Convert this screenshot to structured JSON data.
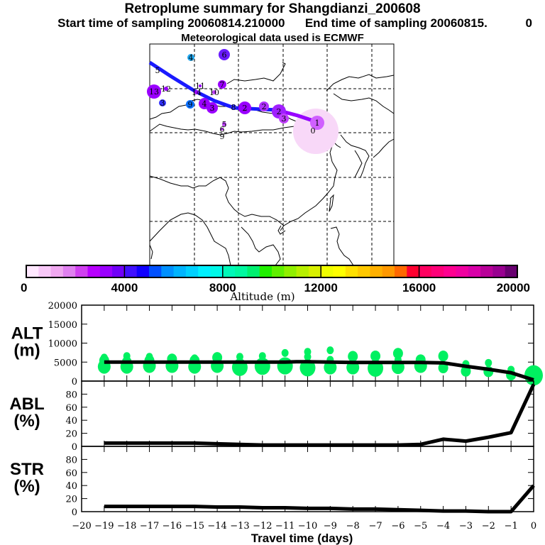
{
  "header": {
    "title": "Retroplume summary for Shangdianzi_200608",
    "subtitle_start": "Start time of sampling 20060814.210000",
    "subtitle_end": "End time of sampling 20060815.",
    "subtitle_end_suffix": "0",
    "met_line": "Meteorological data used is ECMWF"
  },
  "map": {
    "description": "Retroplume trajectory map over East/Central Asia",
    "track_color": "#1a1aff",
    "release_color": "#f8d8f8",
    "cluster_labels": [
      {
        "label": "4",
        "color": "#20a8f0"
      },
      {
        "label": "6",
        "color": "#6a1aff"
      },
      {
        "label": "5",
        "color": "#1a1aff"
      },
      {
        "label": "13",
        "color": "#9a00ff"
      },
      {
        "label": "12",
        "color": "#9a00ff"
      },
      {
        "label": "14",
        "color": "#9a00ff"
      },
      {
        "label": "11",
        "color": "#9a00ff"
      },
      {
        "label": "7",
        "color": "#9a00ff"
      },
      {
        "label": "10",
        "color": "#c040ff"
      },
      {
        "label": "3",
        "color": "#3030ff"
      },
      {
        "label": "9",
        "color": "#0a70ff"
      },
      {
        "label": "4",
        "color": "#9a00ff"
      },
      {
        "label": "3",
        "color": "#9a00ff"
      },
      {
        "label": "8",
        "color": "#3030ff"
      },
      {
        "label": "2",
        "color": "#9a00ff"
      },
      {
        "label": "2",
        "color": "#b030ff"
      },
      {
        "label": "2",
        "color": "#a020ff"
      },
      {
        "label": "3",
        "color": "#c040ff"
      },
      {
        "label": "1",
        "color": "#d060ff"
      },
      {
        "label": "0",
        "color": "#f8d8f8"
      },
      {
        "label": "5",
        "color": "#c040ff"
      },
      {
        "label": "6",
        "color": "#c040ff"
      },
      {
        "label": "9",
        "color": "#ffffff"
      }
    ]
  },
  "colorbar": {
    "xlabel": "Altitude (m)",
    "ticks": [
      "0",
      "4000",
      "8000",
      "12000",
      "16000",
      "20000"
    ],
    "range": [
      0,
      20000
    ],
    "colors": [
      "#ffe8ff",
      "#f8c8f8",
      "#f0a8f0",
      "#e080f0",
      "#d040f0",
      "#b800ff",
      "#9a00ff",
      "#7000f8",
      "#4010ff",
      "#1000ff",
      "#0050ff",
      "#0090ff",
      "#00b4ff",
      "#00d0ff",
      "#00f0ff",
      "#00f8e8",
      "#00f8b8",
      "#00f8a0",
      "#00f070",
      "#20f000",
      "#60f000",
      "#90f000",
      "#b8f000",
      "#d8f000",
      "#f0ff00",
      "#ffff00",
      "#ffe000",
      "#ffc800",
      "#ffb000",
      "#ff9800",
      "#ff6800",
      "#ff0030",
      "#ff0060",
      "#ff0078",
      "#ff0090",
      "#f000a0",
      "#d800a8",
      "#b80098",
      "#980090",
      "#680070"
    ]
  },
  "chart_data": [
    {
      "type": "line",
      "panel_label": "ALT\n(m)",
      "panel_label_lines": [
        "ALT",
        "(m)"
      ],
      "ylabel": "ALT (m)",
      "ylim": [
        0,
        20000
      ],
      "yticks": [
        "0",
        "5000",
        "10000",
        "15000",
        "20000"
      ],
      "ytick_values": [
        0,
        5000,
        10000,
        15000,
        20000
      ],
      "x": [
        -19,
        -18,
        -17,
        -16,
        -15,
        -14,
        -13,
        -12,
        -11,
        -10.5,
        -10,
        -9,
        -8,
        -7,
        -6,
        -5,
        -4,
        -3,
        -2,
        -1,
        0
      ],
      "values": [
        5000,
        5000,
        5000,
        5000,
        5000,
        5000,
        5000,
        5000,
        5000,
        5100,
        5100,
        5000,
        4900,
        4900,
        4900,
        4900,
        4800,
        3900,
        3100,
        2200,
        300
      ],
      "marker_color": "#00f060",
      "cluster_markers": [
        {
          "x": -19,
          "alt": [
            3800,
            5400,
            6200
          ],
          "size": [
            3,
            2,
            1
          ]
        },
        {
          "x": -18,
          "alt": [
            3800,
            5000,
            6600
          ],
          "size": [
            3,
            2,
            1
          ]
        },
        {
          "x": -17,
          "alt": [
            4000,
            5400,
            6400
          ],
          "size": [
            3,
            2,
            1
          ]
        },
        {
          "x": -16,
          "alt": [
            4000,
            5800
          ],
          "size": [
            3,
            2
          ]
        },
        {
          "x": -15,
          "alt": [
            3800,
            5400,
            6000
          ],
          "size": [
            3,
            2,
            1
          ]
        },
        {
          "x": -14,
          "alt": [
            4000,
            6200
          ],
          "size": [
            3,
            2
          ]
        },
        {
          "x": -13,
          "alt": [
            3600,
            5200,
            6400
          ],
          "size": [
            4,
            1,
            1
          ]
        },
        {
          "x": -12,
          "alt": [
            3900,
            6600
          ],
          "size": [
            4,
            1
          ]
        },
        {
          "x": -11,
          "alt": [
            4000,
            7400
          ],
          "size": [
            4,
            1
          ]
        },
        {
          "x": -10,
          "alt": [
            3500,
            6400,
            7700
          ],
          "size": [
            4,
            1,
            1
          ]
        },
        {
          "x": -9,
          "alt": [
            3600,
            5600,
            8100
          ],
          "size": [
            3,
            1,
            1
          ]
        },
        {
          "x": -8,
          "alt": [
            3600,
            6500
          ],
          "size": [
            3,
            2
          ]
        },
        {
          "x": -7,
          "alt": [
            3400,
            6600
          ],
          "size": [
            4,
            2
          ]
        },
        {
          "x": -6,
          "alt": [
            3700,
            5600,
            7300
          ],
          "size": [
            3,
            1,
            2
          ]
        },
        {
          "x": -5,
          "alt": [
            4000,
            5600
          ],
          "size": [
            3,
            2
          ]
        },
        {
          "x": -4,
          "alt": [
            3500,
            6600
          ],
          "size": [
            2,
            2
          ]
        },
        {
          "x": -3,
          "alt": [
            2600,
            4500
          ],
          "size": [
            2,
            1
          ]
        },
        {
          "x": -2,
          "alt": [
            2500,
            4800
          ],
          "size": [
            2,
            1
          ]
        },
        {
          "x": -1,
          "alt": [
            1600,
            3000
          ],
          "size": [
            2,
            1
          ]
        },
        {
          "x": 0,
          "alt": [
            1500
          ],
          "size": [
            5
          ]
        }
      ]
    },
    {
      "type": "line",
      "panel_label_lines": [
        "ABL",
        "(%)"
      ],
      "ylabel": "ABL (%)",
      "ylim": [
        0,
        100
      ],
      "yticks": [
        "0",
        "20",
        "40",
        "60",
        "80"
      ],
      "ytick_values": [
        0,
        20,
        40,
        60,
        80
      ],
      "x": [
        -19,
        -18,
        -17,
        -16,
        -15,
        -14,
        -13,
        -12,
        -11,
        -10,
        -9,
        -8,
        -7,
        -6,
        -5,
        -4,
        -3,
        -2,
        -1,
        0
      ],
      "values": [
        5,
        5,
        5,
        5,
        5,
        4,
        3,
        2,
        2,
        2,
        2,
        2,
        2,
        2,
        3,
        11,
        8,
        14,
        21,
        95
      ]
    },
    {
      "type": "line",
      "panel_label_lines": [
        "STR",
        "(%)"
      ],
      "ylabel": "STR (%)",
      "ylim": [
        0,
        100
      ],
      "yticks": [
        "0",
        "20",
        "40",
        "60",
        "80"
      ],
      "ytick_values": [
        0,
        20,
        40,
        60,
        80
      ],
      "x": [
        -19,
        -18,
        -17,
        -16,
        -15,
        -14,
        -13,
        -12,
        -11,
        -10,
        -9,
        -8,
        -7,
        -6,
        -5,
        -4,
        -3,
        -2,
        -1,
        0
      ],
      "values": [
        8,
        8,
        8,
        8,
        8,
        7,
        7,
        6,
        6,
        5,
        5,
        4,
        4,
        3,
        2,
        1,
        1,
        0,
        0,
        40
      ],
      "xlabel": "Travel time (days)",
      "xlim": [
        -20,
        0
      ],
      "xticks": [
        "-20",
        "-19",
        "-18",
        "-17",
        "-16",
        "-15",
        "-14",
        "-13",
        "-12",
        "-11",
        "-10",
        "-9",
        "-8",
        "-7",
        "-6",
        "-5",
        "-4",
        "-3",
        "-2",
        "-1",
        "0"
      ],
      "xtick_values": [
        -20,
        -19,
        -18,
        -17,
        -16,
        -15,
        -14,
        -13,
        -12,
        -11,
        -10,
        -9,
        -8,
        -7,
        -6,
        -5,
        -4,
        -3,
        -2,
        -1,
        0
      ]
    }
  ]
}
